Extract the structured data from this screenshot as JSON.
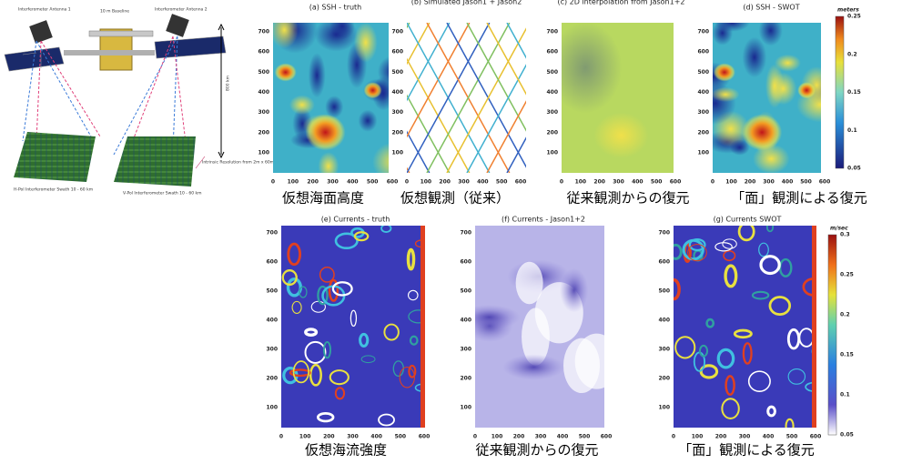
{
  "diagram": {
    "antenna1": "Interferometer Antenna 1",
    "baseline": "10 m Baseline",
    "antenna2": "Interferometer Antenna 2",
    "altitude": "800 km",
    "hswath": "H-Pol Interferometer Swath 10 - 60 km",
    "vswath": "V-Pol Interferometer Swath 10 - 60 km",
    "resolution": "Intrinsic Resolution from 2m x 60m to 2m x 10m"
  },
  "panels": [
    {
      "title": "(a) SSH - truth",
      "caption": "仮想海面高度",
      "yticks": [
        "700",
        "600",
        "500",
        "400",
        "300",
        "200",
        "100"
      ],
      "xticks": [
        "0",
        "100",
        "200",
        "300",
        "400",
        "500",
        "600"
      ]
    },
    {
      "title": "(b) Simulated Jason1 + Jason2",
      "caption": "仮想観測（従来）",
      "yticks": [
        "700",
        "600",
        "500",
        "400",
        "300",
        "200",
        "100"
      ],
      "xticks": [
        "0",
        "100",
        "200",
        "300",
        "400",
        "500",
        "600"
      ]
    },
    {
      "title": "(c) 2D interpolation from Jason1+2",
      "caption": "従来観測からの復元",
      "yticks": [
        "700",
        "600",
        "500",
        "400",
        "300",
        "200",
        "100"
      ],
      "xticks": [
        "0",
        "100",
        "200",
        "300",
        "400",
        "500",
        "600"
      ]
    },
    {
      "title": "(d) SSH - SWOT",
      "caption": "「面」観測による復元",
      "yticks": [
        "700",
        "600",
        "500",
        "400",
        "300",
        "200",
        "100"
      ],
      "xticks": [
        "0",
        "100",
        "200",
        "300",
        "400",
        "500",
        "600"
      ]
    },
    {
      "title": "(e) Currents - truth",
      "caption": "仮想海流強度",
      "yticks": [
        "700",
        "600",
        "500",
        "400",
        "300",
        "200",
        "100"
      ],
      "xticks": [
        "0",
        "100",
        "200",
        "300",
        "400",
        "500",
        "600"
      ]
    },
    {
      "title": "(f) Currents - Jason1+2",
      "caption": "従来観測からの復元",
      "yticks": [
        "700",
        "600",
        "500",
        "400",
        "300",
        "200",
        "100"
      ],
      "xticks": [
        "0",
        "100",
        "200",
        "300",
        "400",
        "500",
        "600"
      ]
    },
    {
      "title": "(g) Currents SWOT",
      "caption": "「面」観測による復元",
      "yticks": [
        "700",
        "600",
        "500",
        "400",
        "300",
        "200",
        "100"
      ],
      "xticks": [
        "0",
        "100",
        "200",
        "300",
        "400",
        "500",
        "600"
      ]
    }
  ],
  "colorbars": [
    {
      "unit": "meters",
      "ticks": [
        "0.25",
        "0.2",
        "0.15",
        "0.1",
        "0.05"
      ]
    },
    {
      "unit": "m/sec",
      "ticks": [
        "0.3",
        "0.25",
        "0.2",
        "0.15",
        "0.1",
        "0.05"
      ]
    }
  ]
}
